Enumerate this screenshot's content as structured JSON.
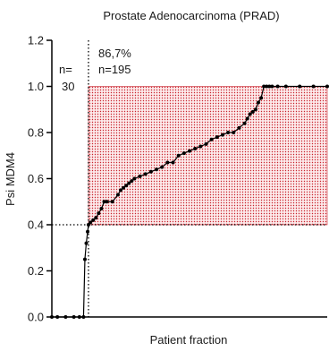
{
  "chart_data": {
    "type": "line",
    "title": "Prostate Adenocarcinoma (PRAD)",
    "xlabel": "Patient fraction",
    "ylabel": "Psi MDM4",
    "xlim": [
      0,
      1
    ],
    "ylim": [
      0,
      1.2
    ],
    "yticks": [
      "0.0",
      "0.2",
      "0.4",
      "0.6",
      "0.8",
      "1.0",
      "1.2"
    ],
    "grid": false,
    "threshold_y": 0.4,
    "threshold_x": 0.133,
    "annotations": {
      "left_line1": "n=",
      "left_line2": "30",
      "right_line1": "86,7%",
      "right_line2": "n=195"
    },
    "series": [
      {
        "x": [
          0,
          0.02,
          0.05,
          0.08,
          0.1,
          0.115,
          0.12,
          0.125,
          0.13,
          0.133,
          0.14,
          0.15,
          0.16,
          0.17,
          0.18,
          0.19,
          0.2,
          0.22,
          0.24,
          0.25,
          0.26,
          0.27,
          0.28,
          0.29,
          0.3,
          0.32,
          0.34,
          0.36,
          0.38,
          0.4,
          0.42,
          0.44,
          0.46,
          0.48,
          0.5,
          0.52,
          0.54,
          0.56,
          0.58,
          0.6,
          0.62,
          0.64,
          0.66,
          0.68,
          0.7,
          0.71,
          0.72,
          0.73,
          0.74,
          0.75,
          0.76,
          0.77,
          0.78,
          0.79,
          0.8,
          0.82,
          0.85,
          0.9,
          0.95,
          1.0
        ],
        "y": [
          0.0,
          0.0,
          0.0,
          0.0,
          0.0,
          0.0,
          0.25,
          0.32,
          0.37,
          0.4,
          0.41,
          0.42,
          0.43,
          0.45,
          0.47,
          0.5,
          0.5,
          0.5,
          0.53,
          0.55,
          0.56,
          0.57,
          0.58,
          0.59,
          0.6,
          0.61,
          0.62,
          0.63,
          0.64,
          0.65,
          0.67,
          0.67,
          0.7,
          0.71,
          0.72,
          0.73,
          0.74,
          0.75,
          0.77,
          0.78,
          0.79,
          0.8,
          0.8,
          0.82,
          0.84,
          0.86,
          0.88,
          0.89,
          0.9,
          0.93,
          0.95,
          1.0,
          1.0,
          1.0,
          1.0,
          1.0,
          1.0,
          1.0,
          1.0,
          1.0
        ]
      }
    ]
  }
}
